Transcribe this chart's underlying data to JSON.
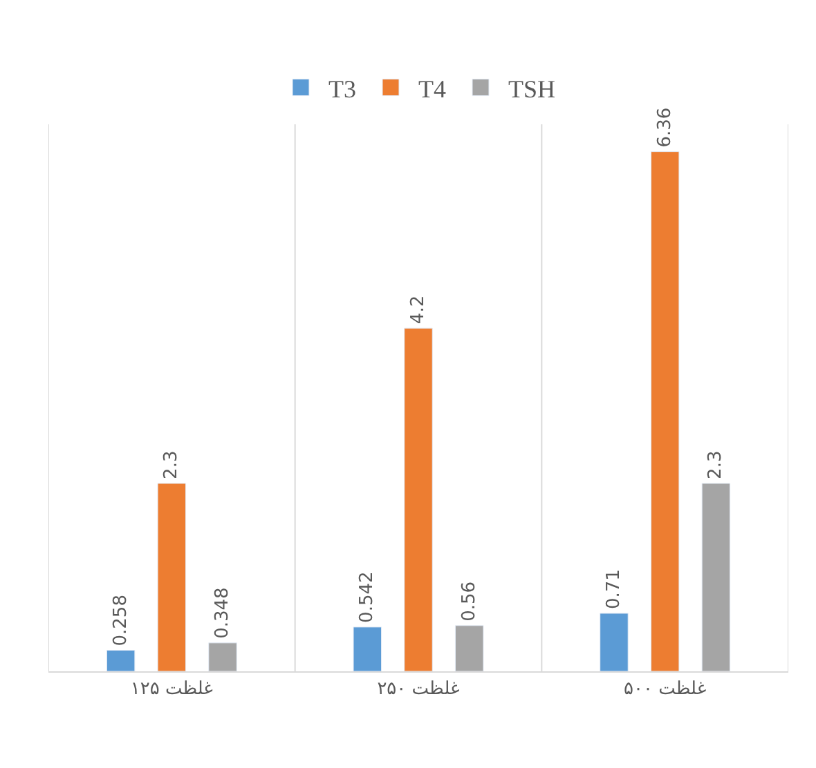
{
  "chart_data": {
    "type": "bar",
    "categories": [
      "غلظت ۱۲۵",
      "غلظت ۲۵۰",
      "غلظت ۵۰۰"
    ],
    "series": [
      {
        "name": "T3",
        "color": "#5b9bd5",
        "values": [
          0.258,
          0.542,
          0.71
        ]
      },
      {
        "name": "T4",
        "color": "#ed7d31",
        "values": [
          2.3,
          4.2,
          6.36
        ]
      },
      {
        "name": "TSH",
        "color": "#a5a5a5",
        "values": [
          0.348,
          0.56,
          2.3
        ]
      }
    ],
    "data_labels": true,
    "grid": "x",
    "legend": "top"
  }
}
